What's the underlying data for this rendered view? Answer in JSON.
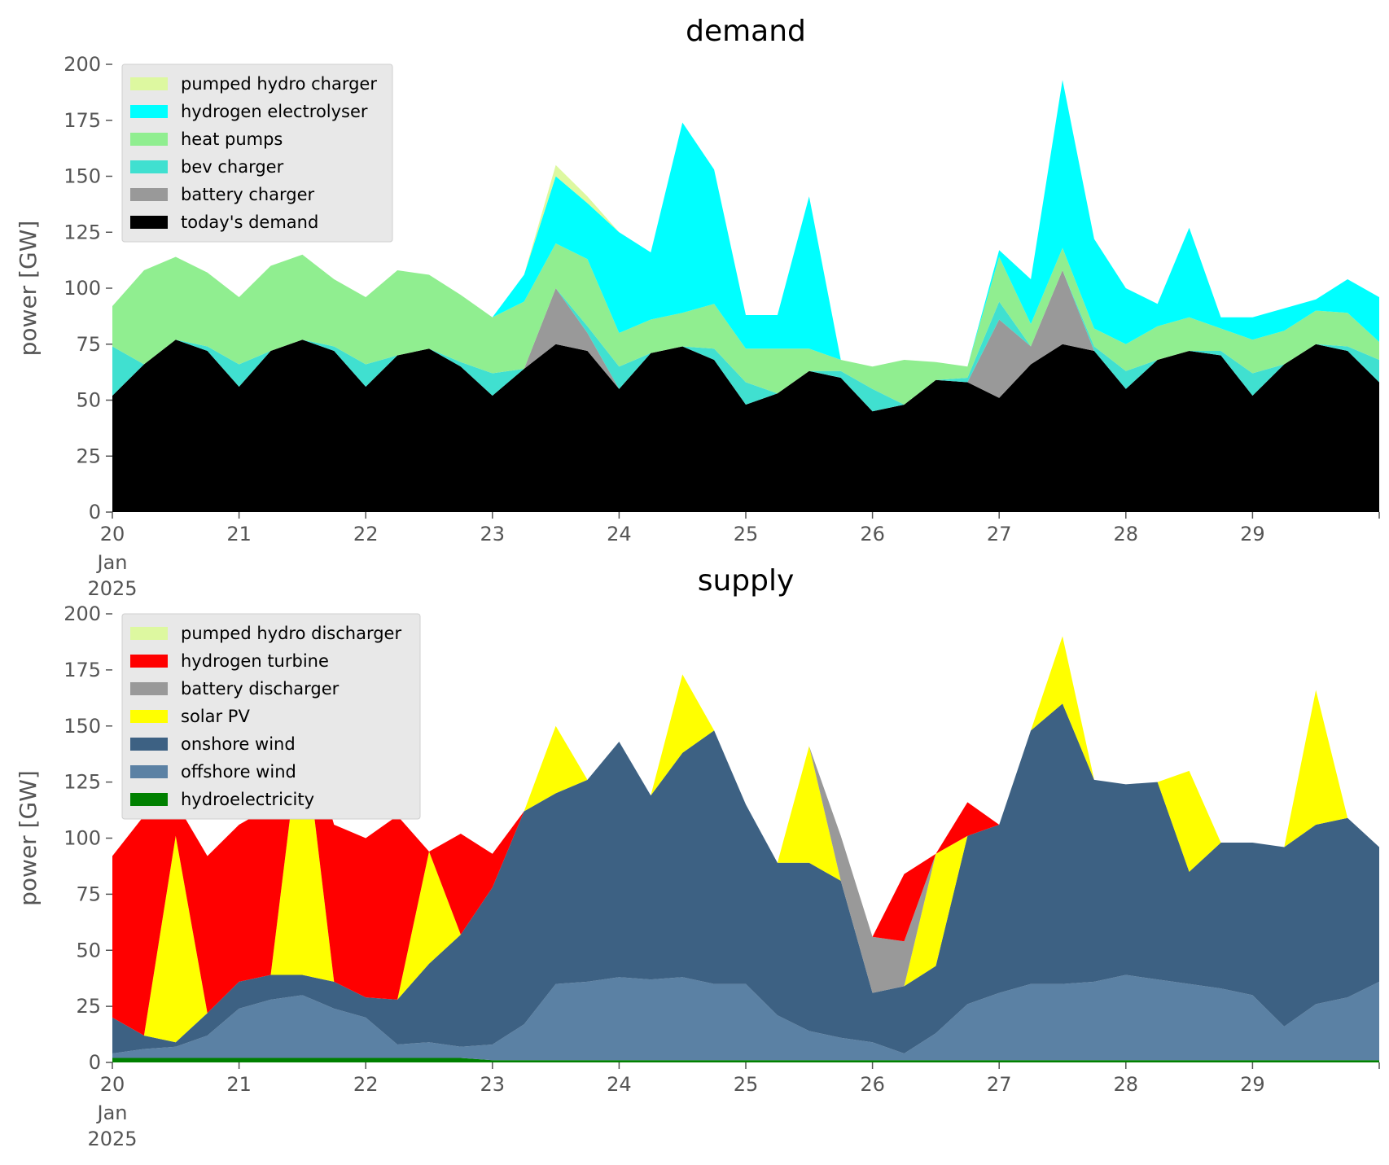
{
  "chart_data": [
    {
      "type": "area",
      "stacked": true,
      "title": "demand",
      "ylabel": "power [GW]",
      "xlabel": "",
      "x_start": "2025-01-20",
      "x_end": "2025-01-30",
      "ylim": [
        0,
        200
      ],
      "yticks": [
        0,
        25,
        50,
        75,
        100,
        125,
        150,
        175,
        200
      ],
      "xtick_labels": [
        "20",
        "21",
        "22",
        "23",
        "24",
        "25",
        "26",
        "27",
        "28",
        "29"
      ],
      "xtick_sublabels": [
        "Jan",
        "2025"
      ],
      "grid": false,
      "background": "#ffffff",
      "legend_position": "top-left",
      "x": [
        "01-20 00:00",
        "01-20 06:00",
        "01-20 12:00",
        "01-20 18:00",
        "01-21 00:00",
        "01-21 06:00",
        "01-21 12:00",
        "01-21 18:00",
        "01-22 00:00",
        "01-22 06:00",
        "01-22 12:00",
        "01-22 18:00",
        "01-23 00:00",
        "01-23 06:00",
        "01-23 12:00",
        "01-23 18:00",
        "01-24 00:00",
        "01-24 06:00",
        "01-24 12:00",
        "01-24 18:00",
        "01-25 00:00",
        "01-25 06:00",
        "01-25 12:00",
        "01-25 18:00",
        "01-26 00:00",
        "01-26 06:00",
        "01-26 12:00",
        "01-26 18:00",
        "01-27 00:00",
        "01-27 06:00",
        "01-27 12:00",
        "01-27 18:00",
        "01-28 00:00",
        "01-28 06:00",
        "01-28 12:00",
        "01-28 18:00",
        "01-29 00:00",
        "01-29 06:00",
        "01-29 12:00",
        "01-29 18:00",
        "01-30 00:00"
      ],
      "series": [
        {
          "name": "today's demand",
          "color": "#000000",
          "values": [
            52,
            66,
            77,
            72,
            56,
            72,
            77,
            72,
            56,
            70,
            73,
            65,
            52,
            64,
            75,
            72,
            55,
            71,
            74,
            68,
            48,
            53,
            63,
            60,
            45,
            48,
            59,
            58,
            51,
            66,
            75,
            72,
            55,
            68,
            72,
            70,
            52,
            66,
            75,
            72,
            58
          ]
        },
        {
          "name": "battery charger",
          "color": "#999999",
          "values": [
            0,
            0,
            0,
            0,
            0,
            0,
            0,
            0,
            0,
            0,
            0,
            0,
            0,
            0,
            25,
            8,
            0,
            0,
            0,
            0,
            0,
            0,
            0,
            0,
            0,
            0,
            0,
            0,
            35,
            8,
            33,
            0,
            0,
            0,
            0,
            0,
            0,
            0,
            0,
            0,
            0
          ]
        },
        {
          "name": "bev charger",
          "color": "#40e0d0",
          "values": [
            22,
            0,
            0,
            2,
            10,
            0,
            0,
            2,
            10,
            0,
            0,
            2,
            10,
            0,
            0,
            3,
            10,
            0,
            0,
            5,
            10,
            0,
            0,
            3,
            10,
            0,
            0,
            2,
            8,
            0,
            0,
            2,
            8,
            0,
            0,
            2,
            10,
            0,
            0,
            2,
            10
          ]
        },
        {
          "name": "heat pumps",
          "color": "#90ee90",
          "values": [
            18,
            42,
            37,
            33,
            30,
            38,
            38,
            30,
            30,
            38,
            33,
            30,
            25,
            30,
            20,
            30,
            15,
            15,
            15,
            20,
            15,
            20,
            10,
            5,
            10,
            20,
            8,
            5,
            20,
            10,
            10,
            8,
            12,
            15,
            15,
            10,
            15,
            15,
            15,
            15,
            8
          ]
        },
        {
          "name": "hydrogen electrolyser",
          "color": "#00ffff",
          "values": [
            0,
            0,
            0,
            0,
            0,
            0,
            0,
            0,
            0,
            0,
            0,
            0,
            0,
            12,
            30,
            25,
            45,
            30,
            85,
            60,
            15,
            15,
            68,
            0,
            0,
            0,
            0,
            0,
            3,
            20,
            75,
            40,
            25,
            10,
            40,
            5,
            10,
            10,
            5,
            15,
            20
          ]
        },
        {
          "name": "pumped hydro charger",
          "color": "#ddf8a0",
          "values": [
            0,
            0,
            0,
            0,
            0,
            0,
            0,
            0,
            0,
            0,
            0,
            0,
            0,
            0,
            5,
            3,
            0,
            0,
            0,
            0,
            0,
            0,
            0,
            0,
            0,
            0,
            0,
            0,
            0,
            0,
            0,
            0,
            0,
            0,
            0,
            0,
            0,
            0,
            0,
            0,
            0
          ]
        }
      ],
      "legend": [
        "pumped hydro charger",
        "hydrogen electrolyser",
        "heat pumps",
        "bev charger",
        "battery charger",
        "today's demand"
      ]
    },
    {
      "type": "area",
      "stacked": true,
      "title": "supply",
      "ylabel": "power [GW]",
      "xlabel": "",
      "x_start": "2025-01-20",
      "x_end": "2025-01-30",
      "ylim": [
        0,
        200
      ],
      "yticks": [
        0,
        25,
        50,
        75,
        100,
        125,
        150,
        175,
        200
      ],
      "xtick_labels": [
        "20",
        "21",
        "22",
        "23",
        "24",
        "25",
        "26",
        "27",
        "28",
        "29"
      ],
      "xtick_sublabels": [
        "Jan",
        "2025"
      ],
      "grid": false,
      "background": "#ffffff",
      "legend_position": "top-left",
      "x": [
        "01-20 00:00",
        "01-20 06:00",
        "01-20 12:00",
        "01-20 18:00",
        "01-21 00:00",
        "01-21 06:00",
        "01-21 12:00",
        "01-21 18:00",
        "01-22 00:00",
        "01-22 06:00",
        "01-22 12:00",
        "01-22 18:00",
        "01-23 00:00",
        "01-23 06:00",
        "01-23 12:00",
        "01-23 18:00",
        "01-24 00:00",
        "01-24 06:00",
        "01-24 12:00",
        "01-24 18:00",
        "01-25 00:00",
        "01-25 06:00",
        "01-25 12:00",
        "01-25 18:00",
        "01-26 00:00",
        "01-26 06:00",
        "01-26 12:00",
        "01-26 18:00",
        "01-27 00:00",
        "01-27 06:00",
        "01-27 12:00",
        "01-27 18:00",
        "01-28 00:00",
        "01-28 06:00",
        "01-28 12:00",
        "01-28 18:00",
        "01-29 00:00",
        "01-29 06:00",
        "01-29 12:00",
        "01-29 18:00",
        "01-30 00:00"
      ],
      "series": [
        {
          "name": "hydroelectricity",
          "color": "#008000",
          "values": [
            2,
            2,
            2,
            2,
            2,
            2,
            2,
            2,
            2,
            2,
            2,
            2,
            1,
            1,
            1,
            1,
            1,
            1,
            1,
            1,
            1,
            1,
            1,
            1,
            1,
            1,
            1,
            1,
            1,
            1,
            1,
            1,
            1,
            1,
            1,
            1,
            1,
            1,
            1,
            1,
            1
          ]
        },
        {
          "name": "offshore wind",
          "color": "#5b81a4",
          "values": [
            2,
            4,
            5,
            10,
            22,
            26,
            28,
            22,
            18,
            6,
            7,
            5,
            7,
            16,
            34,
            35,
            37,
            36,
            37,
            34,
            34,
            20,
            13,
            10,
            8,
            3,
            12,
            25,
            30,
            34,
            34,
            35,
            38,
            36,
            34,
            32,
            29,
            15,
            25,
            28,
            35
          ]
        },
        {
          "name": "onshore wind",
          "color": "#3d6183",
          "values": [
            16,
            6,
            2,
            10,
            12,
            11,
            9,
            12,
            9,
            20,
            35,
            50,
            70,
            95,
            85,
            90,
            105,
            82,
            100,
            113,
            80,
            68,
            75,
            70,
            22,
            30,
            30,
            75,
            75,
            113,
            125,
            90,
            85,
            88,
            50,
            65,
            68,
            80,
            80,
            80,
            60
          ]
        },
        {
          "name": "solar PV",
          "color": "#ffff00",
          "values": [
            0,
            0,
            92,
            0,
            0,
            0,
            115,
            0,
            0,
            0,
            50,
            0,
            0,
            0,
            30,
            0,
            0,
            0,
            35,
            0,
            0,
            0,
            52,
            0,
            0,
            0,
            50,
            0,
            0,
            0,
            30,
            0,
            0,
            0,
            45,
            0,
            0,
            0,
            60,
            0,
            0
          ]
        },
        {
          "name": "battery discharger",
          "color": "#999999",
          "values": [
            0,
            0,
            0,
            0,
            0,
            0,
            0,
            0,
            0,
            0,
            0,
            0,
            0,
            0,
            0,
            0,
            0,
            0,
            0,
            0,
            0,
            0,
            0,
            20,
            25,
            20,
            0,
            0,
            0,
            0,
            0,
            0,
            0,
            0,
            0,
            0,
            0,
            0,
            0,
            0,
            0
          ]
        },
        {
          "name": "hydrogen turbine",
          "color": "#ff0000",
          "values": [
            72,
            98,
            15,
            70,
            70,
            75,
            0,
            70,
            71,
            82,
            0,
            45,
            15,
            0,
            0,
            0,
            0,
            0,
            0,
            0,
            0,
            0,
            0,
            0,
            0,
            30,
            0,
            15,
            0,
            0,
            0,
            0,
            0,
            0,
            0,
            0,
            0,
            0,
            0,
            0,
            0
          ]
        },
        {
          "name": "pumped hydro discharger",
          "color": "#ddf8a0",
          "values": [
            0,
            0,
            0,
            0,
            0,
            0,
            0,
            0,
            0,
            0,
            0,
            0,
            0,
            0,
            0,
            0,
            0,
            0,
            0,
            0,
            0,
            0,
            0,
            0,
            0,
            0,
            0,
            0,
            0,
            0,
            0,
            0,
            0,
            0,
            0,
            0,
            0,
            0,
            0,
            0,
            0
          ]
        }
      ],
      "legend": [
        "pumped hydro discharger",
        "hydrogen turbine",
        "battery discharger",
        "solar PV",
        "onshore wind",
        "offshore wind",
        "hydroelectricity"
      ]
    }
  ]
}
